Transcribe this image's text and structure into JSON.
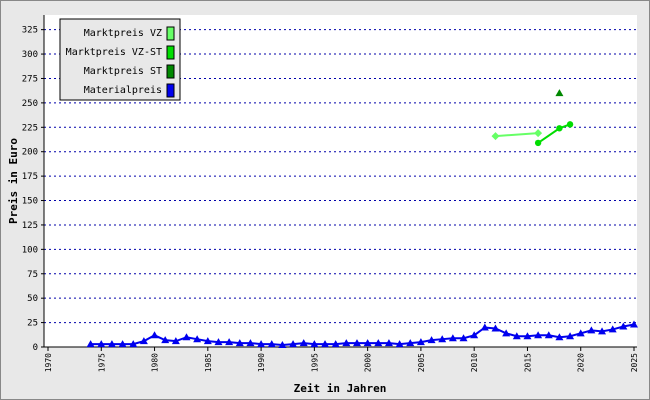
{
  "chart_data": {
    "type": "line",
    "x_label": "Zeit in Jahren",
    "y_label": "Preis in Euro",
    "xlim": [
      1970,
      2025
    ],
    "ylim": [
      0,
      340
    ],
    "xticks": [
      1970,
      1975,
      1980,
      1985,
      1990,
      1995,
      2000,
      2005,
      2010,
      2015,
      2020,
      2025
    ],
    "yticks": [
      0,
      25,
      50,
      75,
      100,
      125,
      150,
      175,
      200,
      225,
      250,
      275,
      300,
      325
    ],
    "grid": true,
    "legend": "upper left",
    "series": [
      {
        "name": "Marktpreis VZ",
        "color": "#66ff66",
        "marker": "diamond",
        "x": [
          2012,
          2016
        ],
        "values": [
          216,
          219
        ]
      },
      {
        "name": "Marktpreis VZ-ST",
        "color": "#00dd00",
        "marker": "circle",
        "x": [
          2016,
          2018,
          2019
        ],
        "values": [
          209,
          224,
          228
        ]
      },
      {
        "name": "Marktpreis ST",
        "color": "#008800",
        "marker": "triangle",
        "x": [
          2018
        ],
        "values": [
          260
        ]
      },
      {
        "name": "Materialpreis",
        "color": "#0000ee",
        "marker": "triangle",
        "x": [
          1974,
          1975,
          1976,
          1977,
          1978,
          1979,
          1980,
          1981,
          1982,
          1983,
          1984,
          1985,
          1986,
          1987,
          1988,
          1989,
          1990,
          1991,
          1992,
          1993,
          1994,
          1995,
          1996,
          1997,
          1998,
          1999,
          2000,
          2001,
          2002,
          2003,
          2004,
          2005,
          2006,
          2007,
          2008,
          2009,
          2010,
          2011,
          2012,
          2013,
          2014,
          2015,
          2016,
          2017,
          2018,
          2019,
          2020,
          2021,
          2022,
          2023,
          2024,
          2025
        ],
        "values": [
          3,
          3,
          3,
          3,
          3,
          6,
          12,
          7,
          6,
          10,
          8,
          6,
          5,
          5,
          4,
          4,
          3,
          3,
          2,
          3,
          4,
          3,
          3,
          3,
          4,
          4,
          4,
          4,
          4,
          3,
          4,
          5,
          7,
          8,
          9,
          9,
          12,
          20,
          19,
          14,
          11,
          11,
          12,
          12,
          10,
          11,
          14,
          17,
          16,
          18,
          21,
          23
        ]
      }
    ]
  }
}
